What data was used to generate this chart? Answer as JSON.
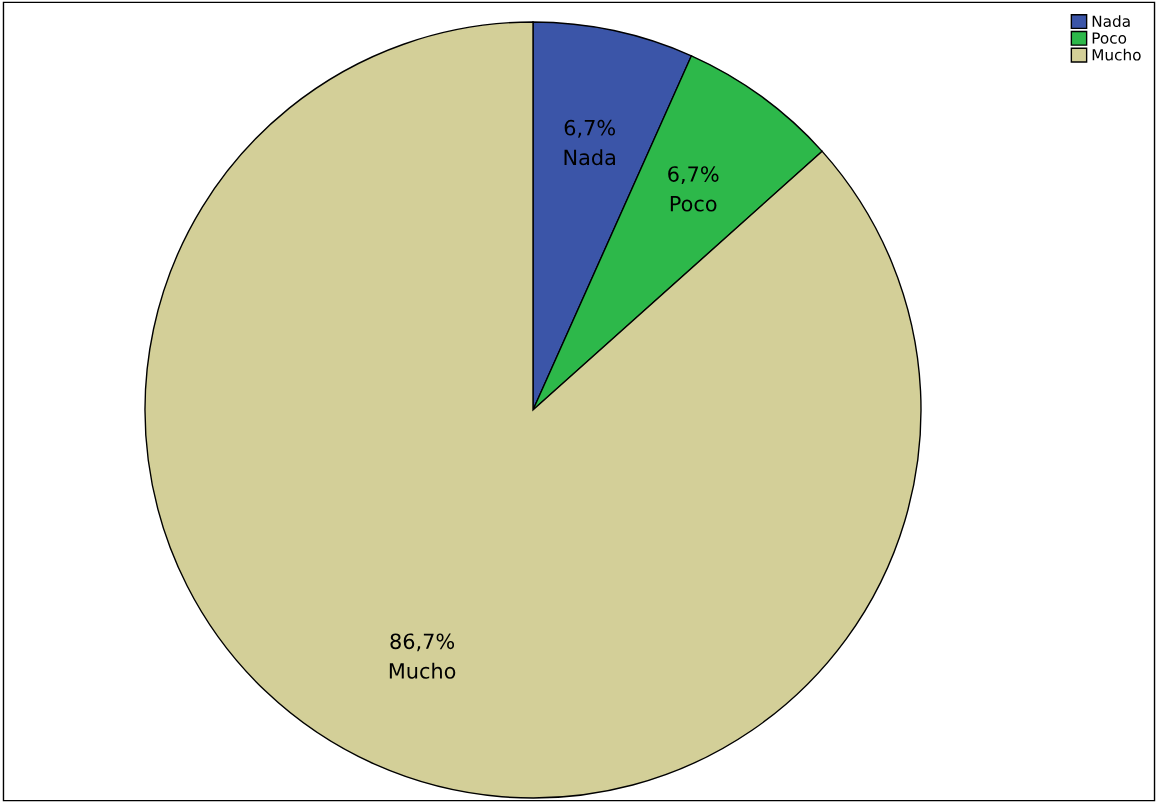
{
  "chart_data": {
    "type": "pie",
    "categories": [
      "Nada",
      "Poco",
      "Mucho"
    ],
    "values": [
      6.7,
      6.7,
      86.7
    ],
    "colors": [
      "#3b55a8",
      "#2db84a",
      "#d3cf98"
    ],
    "value_labels": [
      "6,7%",
      "6,7%",
      "86,7%"
    ],
    "legend": "top right"
  }
}
